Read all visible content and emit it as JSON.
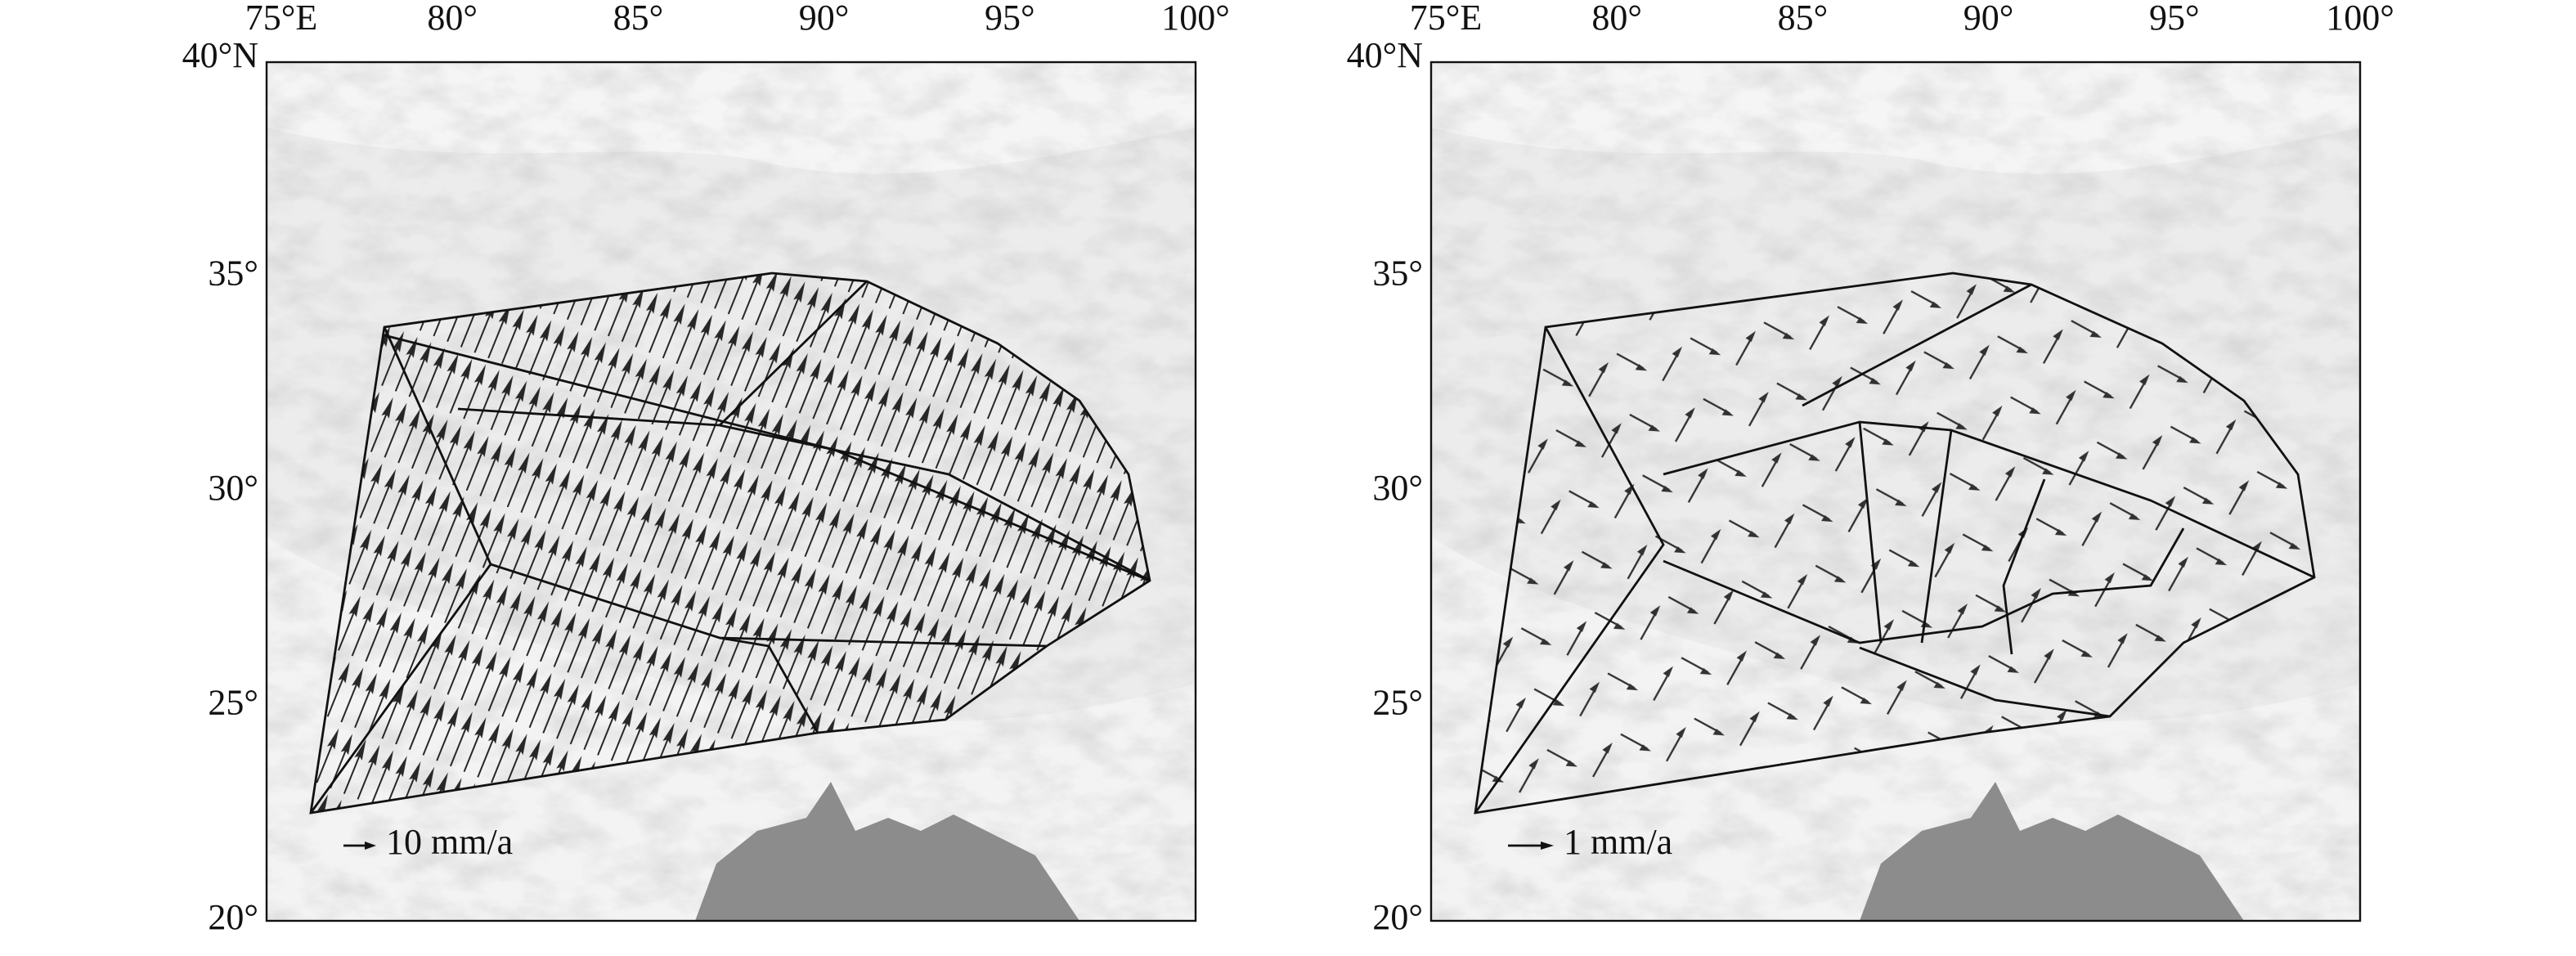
{
  "panels": [
    {
      "lon_labels": [
        "75°E",
        "80°",
        "85°",
        "90°",
        "95°",
        "100°"
      ],
      "lat_labels": [
        "40°N",
        "35°",
        "30°",
        "25°",
        "20°"
      ],
      "scale_label": "10 mm/a"
    },
    {
      "lon_labels": [
        "75°E",
        "80°",
        "85°",
        "90°",
        "95°",
        "100°"
      ],
      "lat_labels": [
        "40°N",
        "35°",
        "30°",
        "25°",
        "20°"
      ],
      "scale_label": "1 mm/a"
    }
  ]
}
